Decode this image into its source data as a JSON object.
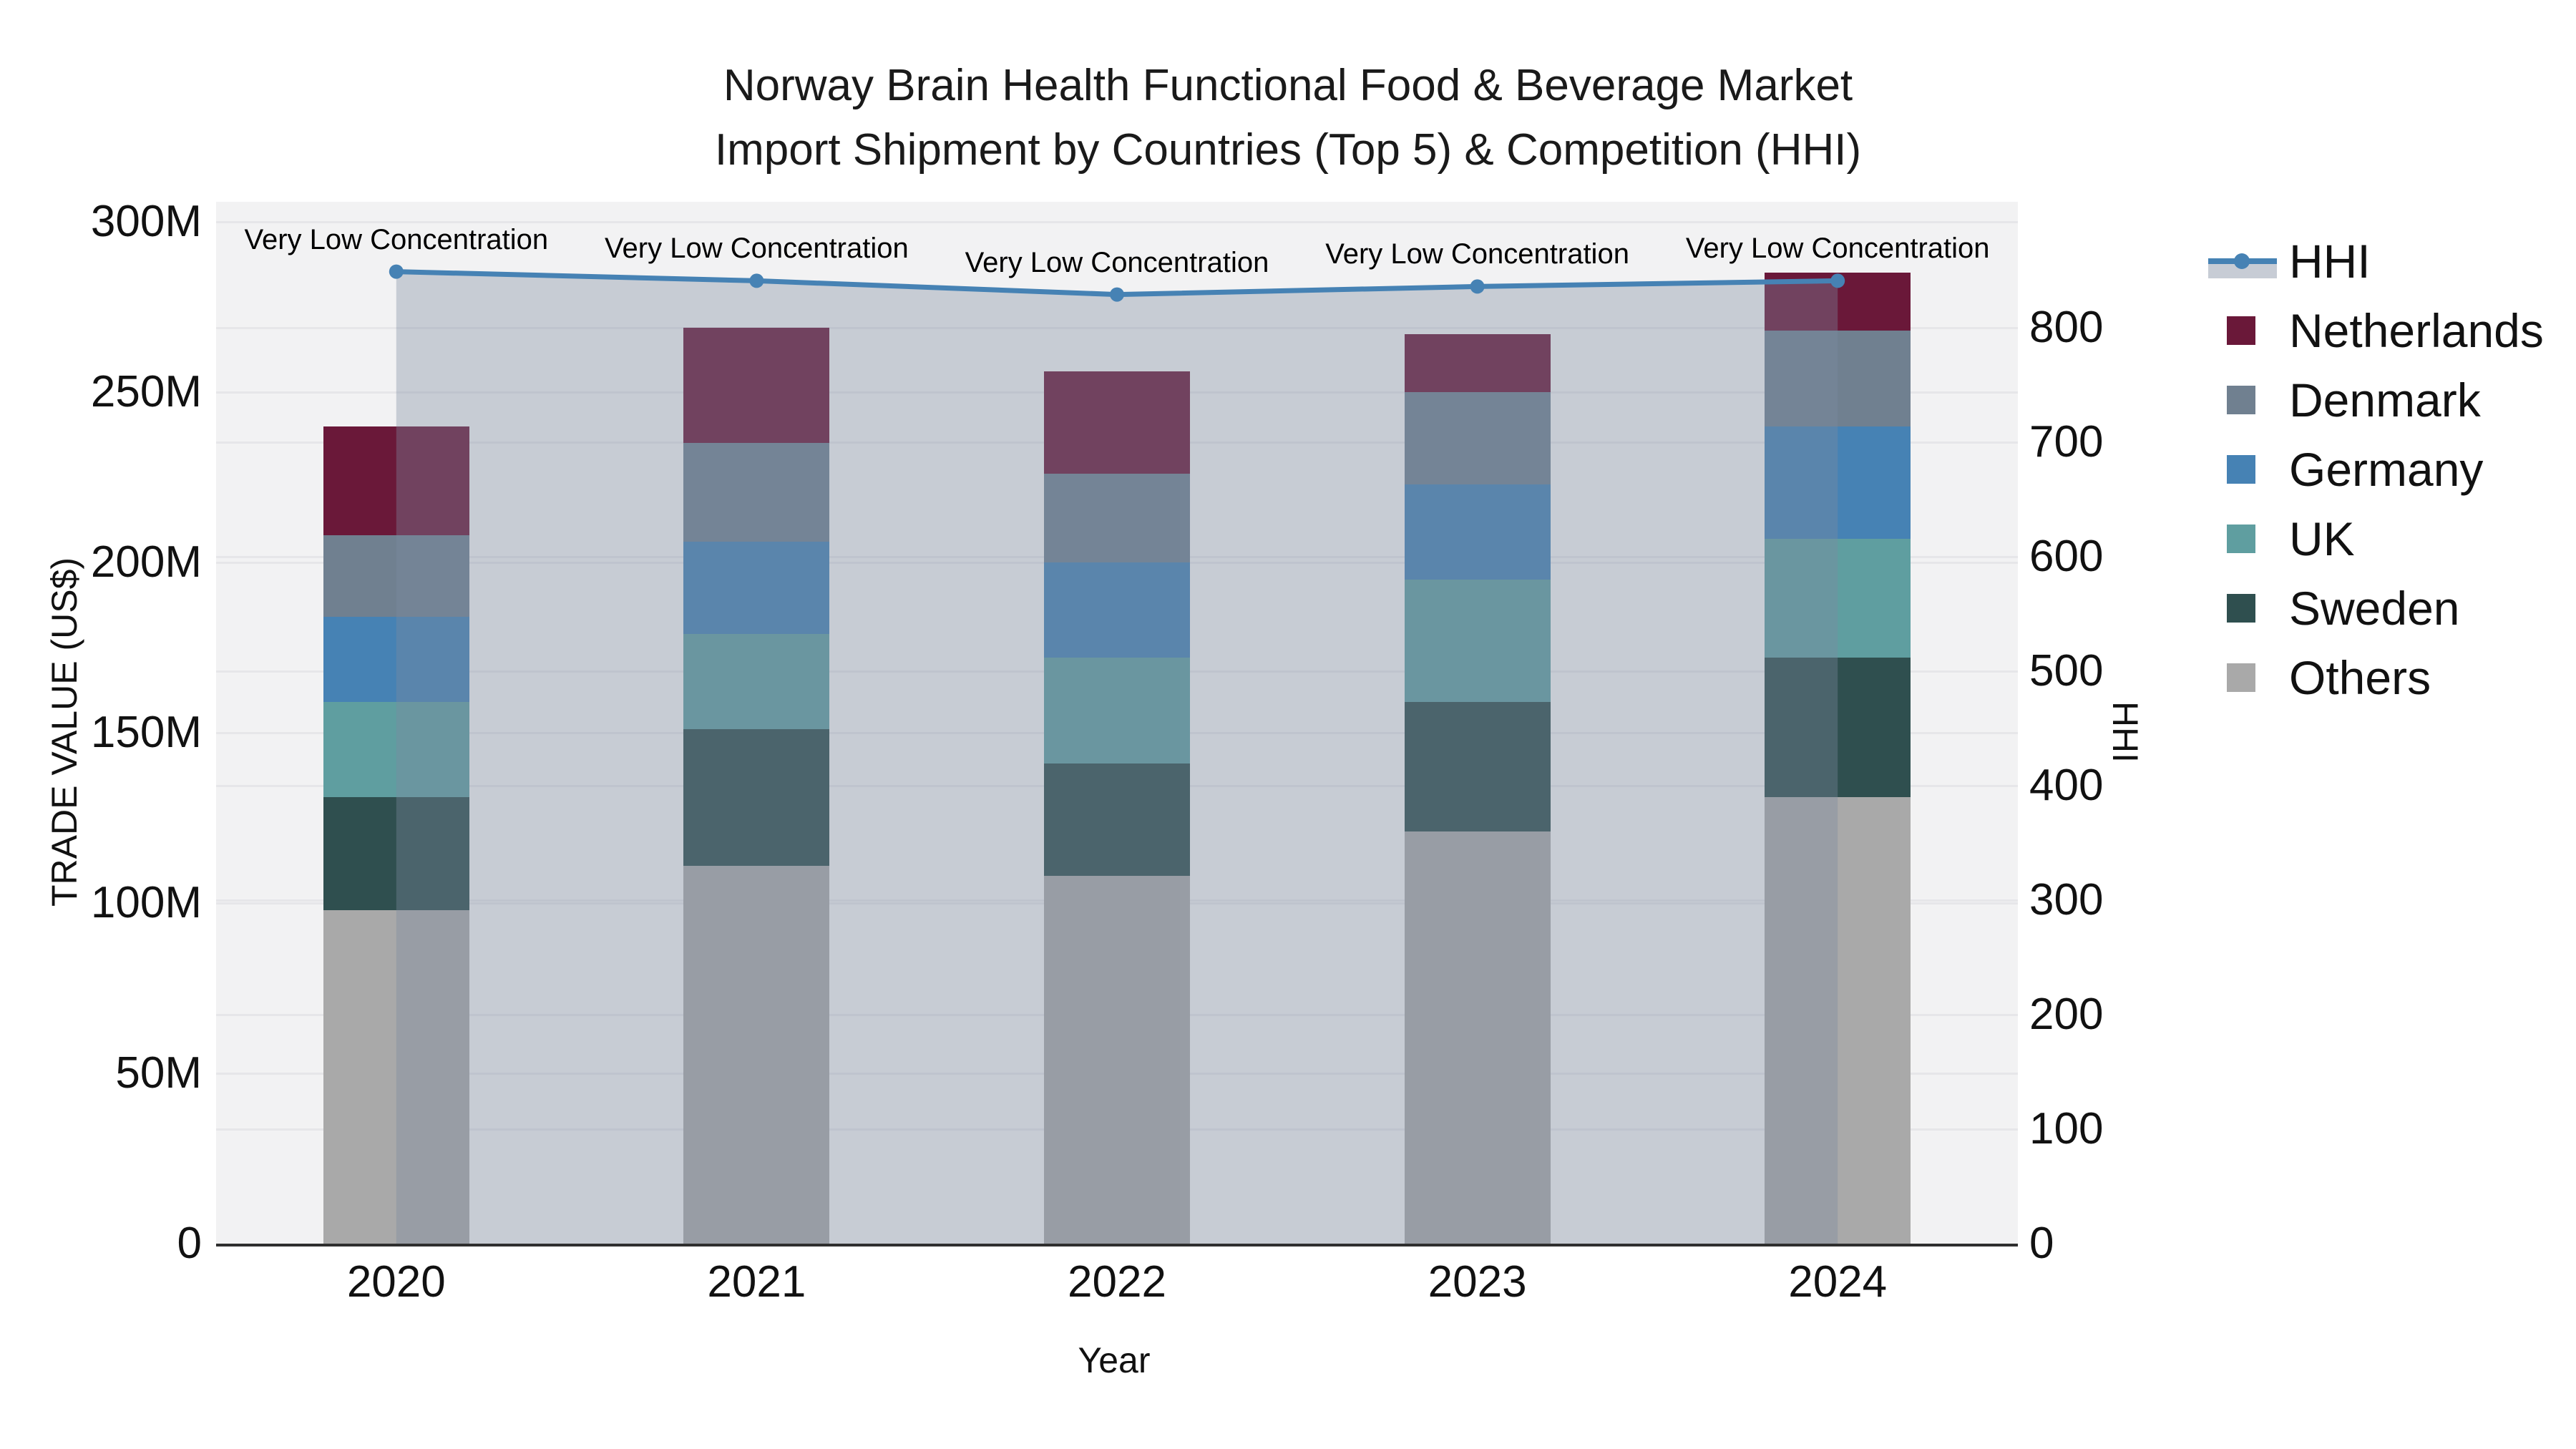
{
  "title": {
    "line1": "Norway Brain Health Functional Food & Beverage Market",
    "line2": "Import Shipment by Countries (Top 5) & Competition (HHI)"
  },
  "axes": {
    "x": {
      "label": "Year",
      "ticks": [
        "2020",
        "2021",
        "2022",
        "2023",
        "2024"
      ]
    },
    "y_left": {
      "label": "TRADE VALUE (US$)",
      "ticks": [
        "0",
        "50M",
        "100M",
        "150M",
        "200M",
        "250M",
        "300M"
      ],
      "tick_step_millions": 50
    },
    "y_right": {
      "label": "HHI",
      "ticks": [
        "0",
        "100",
        "200",
        "300",
        "400",
        "500",
        "600",
        "700",
        "800"
      ],
      "tick_step": 100
    }
  },
  "legend": {
    "items": [
      "HHI",
      "Netherlands",
      "Denmark",
      "Germany",
      "UK",
      "Sweden",
      "Others"
    ]
  },
  "chart_data": {
    "type": "bar+line",
    "categories": [
      "2020",
      "2021",
      "2022",
      "2023",
      "2024"
    ],
    "unit": "M US$ (trade value, left axis)",
    "stack_order_bottom_to_top": [
      "Others",
      "Sweden",
      "UK",
      "Germany",
      "Denmark",
      "Netherlands"
    ],
    "series": [
      {
        "name": "Netherlands",
        "color": "#6a1839",
        "values": [
          32,
          34,
          30,
          17,
          17
        ]
      },
      {
        "name": "Denmark",
        "color": "#708090",
        "values": [
          24,
          29,
          26,
          27,
          28
        ]
      },
      {
        "name": "Germany",
        "color": "#4682b4",
        "values": [
          25,
          27,
          28,
          28,
          33
        ]
      },
      {
        "name": "UK",
        "color": "#5f9ea0",
        "values": [
          28,
          28,
          31,
          36,
          35
        ]
      },
      {
        "name": "Sweden",
        "color": "#2f4f4f",
        "values": [
          33,
          40,
          33,
          38,
          41
        ]
      },
      {
        "name": "Others",
        "color": "#a9a9a9",
        "values": [
          98,
          111,
          108,
          121,
          131
        ]
      }
    ],
    "bar_totals": [
      240,
      269,
      256,
      267,
      285
    ],
    "line": {
      "name": "HHI",
      "axis": "right",
      "color": "#4682b4",
      "area_color": "rgba(125,137,160,0.37)",
      "values": [
        849,
        841,
        829,
        836,
        841
      ]
    },
    "annotations": [
      "Very Low Concentration",
      "Very Low Concentration",
      "Very Low Concentration",
      "Very Low Concentration",
      "Very Low Concentration"
    ],
    "layout": {
      "plot_background": "#f2f2f3",
      "grid": true,
      "legend_position": "right"
    }
  }
}
